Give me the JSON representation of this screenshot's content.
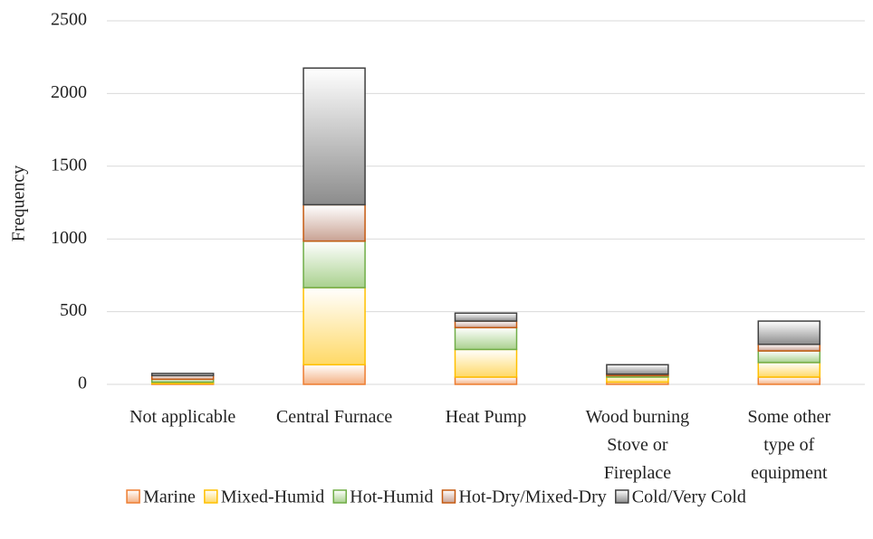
{
  "chart_data": {
    "type": "stacked_bar",
    "ylabel": "Frequency",
    "categories": [
      "Not applicable",
      "Central Furnace",
      "Heat Pump",
      "Wood burning\nStove or\nFireplace",
      "Some other\ntype of\nequipment"
    ],
    "series": [
      {
        "name": "Marine",
        "color": "#f4b183",
        "edgecolor": "#ed7d31",
        "values": [
          5,
          135,
          50,
          15,
          50
        ]
      },
      {
        "name": "Mixed-Humid",
        "color": "#ffd966",
        "edgecolor": "#ffc000",
        "values": [
          10,
          530,
          190,
          35,
          100
        ]
      },
      {
        "name": "Hot-Humid",
        "color": "#a9d18e",
        "edgecolor": "#70ad47",
        "values": [
          20,
          320,
          150,
          10,
          80
        ]
      },
      {
        "name": "Hot-Dry/Mixed-Dry",
        "color": "#c9a293",
        "edgecolor": "#c55a11",
        "values": [
          25,
          250,
          45,
          10,
          45
        ]
      },
      {
        "name": "Cold/Very Cold",
        "color": "#8c8c8c",
        "edgecolor": "#404040",
        "values": [
          15,
          940,
          55,
          65,
          160
        ]
      }
    ],
    "ylim": [
      0,
      2500
    ],
    "yticks": [
      0,
      500,
      1000,
      1500,
      2000,
      2500
    ],
    "grid": true,
    "legend": "bottom"
  }
}
